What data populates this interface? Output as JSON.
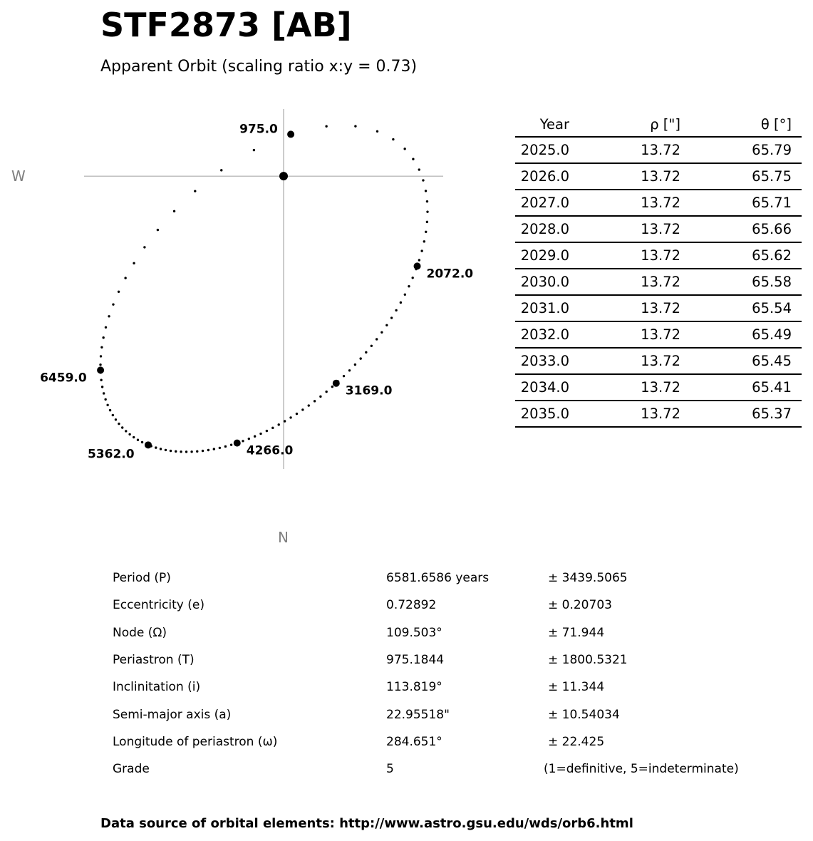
{
  "title": "STF2873 [AB]",
  "subtitle": "Apparent Orbit (scaling ratio x:y = 0.73)",
  "chart_data": {
    "type": "scatter",
    "description_labels": {
      "west": "W",
      "north": "N"
    },
    "orbit_elements": {
      "P": 6581.6586,
      "e": 0.72892,
      "node_deg": 109.503,
      "T": 975.1844,
      "i_deg": 113.819,
      "a_arcsec": 22.95518,
      "omega_deg": 284.651
    },
    "dots_per_period": 100,
    "labeled_epochs": [
      975.0,
      2072.0,
      3169.0,
      4266.0,
      5362.0,
      6459.0
    ],
    "labeled_epoch_texts": [
      "975.0",
      "2072.0",
      "3169.0",
      "4266.0",
      "5362.0",
      "6459.0"
    ],
    "axes": {
      "x_direction_label": "W",
      "y_direction_label": "N",
      "grid": false,
      "origin_marker": true
    }
  },
  "ephemeris": {
    "headers": [
      "Year",
      "ρ [\"]",
      "θ [°]"
    ],
    "rows": [
      [
        "2025.0",
        "13.72",
        "65.79"
      ],
      [
        "2026.0",
        "13.72",
        "65.75"
      ],
      [
        "2027.0",
        "13.72",
        "65.71"
      ],
      [
        "2028.0",
        "13.72",
        "65.66"
      ],
      [
        "2029.0",
        "13.72",
        "65.62"
      ],
      [
        "2030.0",
        "13.72",
        "65.58"
      ],
      [
        "2031.0",
        "13.72",
        "65.54"
      ],
      [
        "2032.0",
        "13.72",
        "65.49"
      ],
      [
        "2033.0",
        "13.72",
        "65.45"
      ],
      [
        "2034.0",
        "13.72",
        "65.41"
      ],
      [
        "2035.0",
        "13.72",
        "65.37"
      ]
    ]
  },
  "elements": [
    {
      "name": "Period (P)",
      "value": "6581.6586 years",
      "error": "± 3439.5065"
    },
    {
      "name": "Eccentricity (e)",
      "value": "0.72892",
      "error": "± 0.20703"
    },
    {
      "name": "Node (Ω)",
      "value": "109.503°",
      "error": "± 71.944"
    },
    {
      "name": "Periastron (T)",
      "value": "975.1844",
      "error": "± 1800.5321"
    },
    {
      "name": "Inclinitation (i)",
      "value": "113.819°",
      "error": "± 11.344"
    },
    {
      "name": "Semi-major axis (a)",
      "value": "22.95518\"",
      "error": "± 10.54034"
    },
    {
      "name": "Longitude of periastron (ω)",
      "value": "284.651°",
      "error": "± 22.425"
    },
    {
      "name": "Grade",
      "value": "5",
      "error": "(1=definitive, 5=indeterminate)"
    }
  ],
  "footer": "Data source of orbital elements: http://www.astro.gsu.edu/wds/orb6.html"
}
